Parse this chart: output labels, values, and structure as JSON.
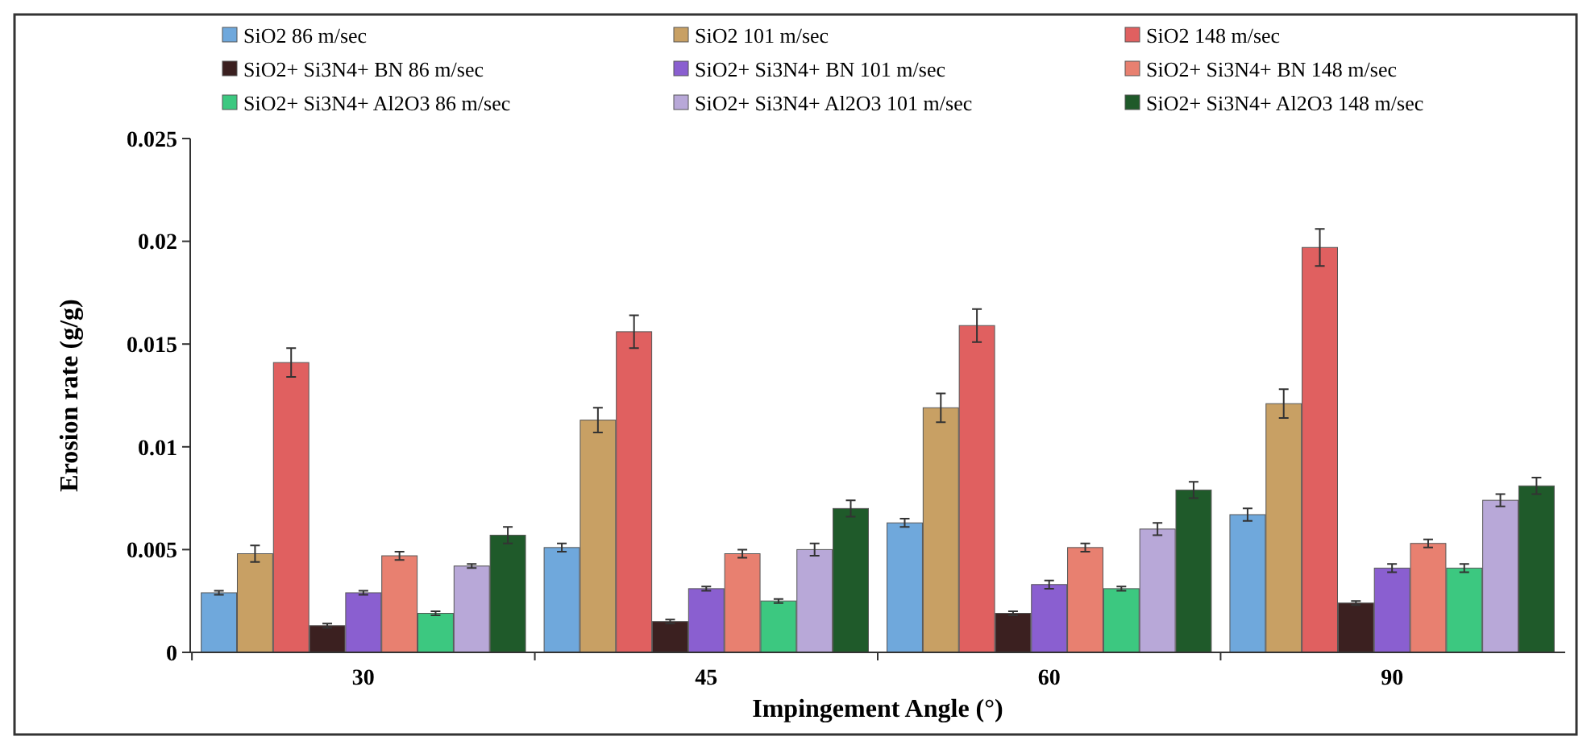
{
  "chart_data": {
    "type": "bar",
    "xlabel": "Impingement Angle (°)",
    "ylabel": "Erosion rate (g/g)",
    "categories": [
      "30",
      "45",
      "60",
      "90"
    ],
    "ylim": [
      0,
      0.025
    ],
    "yticks": [
      0,
      0.005,
      0.01,
      0.015,
      0.02,
      0.025
    ],
    "grid": false,
    "legend": "top",
    "series": [
      {
        "name": "SiO2 86 m/sec",
        "color": "#6fa8dc",
        "values": [
          0.0029,
          0.0051,
          0.0063,
          0.0067
        ],
        "errors": [
          0.0001,
          0.0002,
          0.0002,
          0.0003
        ]
      },
      {
        "name": "SiO2 101 m/sec",
        "color": "#c8a064",
        "values": [
          0.0048,
          0.0113,
          0.0119,
          0.0121
        ],
        "errors": [
          0.0004,
          0.0006,
          0.0007,
          0.0007
        ]
      },
      {
        "name": "SiO2 148 m/sec",
        "color": "#e06060",
        "values": [
          0.0141,
          0.0156,
          0.0159,
          0.0197
        ],
        "errors": [
          0.0007,
          0.0008,
          0.0008,
          0.0009
        ]
      },
      {
        "name": "SiO2+ Si3N4+ BN 86 m/sec",
        "color": "#3b2020",
        "values": [
          0.0013,
          0.0015,
          0.0019,
          0.0024
        ],
        "errors": [
          0.0001,
          0.0001,
          0.0001,
          0.0001
        ]
      },
      {
        "name": "SiO2+ Si3N4+ BN 101 m/sec",
        "color": "#8a5fd0",
        "values": [
          0.0029,
          0.0031,
          0.0033,
          0.0041
        ],
        "errors": [
          0.0001,
          0.0001,
          0.0002,
          0.0002
        ]
      },
      {
        "name": "SiO2+ Si3N4+ BN 148 m/sec",
        "color": "#e88070",
        "values": [
          0.0047,
          0.0048,
          0.0051,
          0.0053
        ],
        "errors": [
          0.0002,
          0.0002,
          0.0002,
          0.0002
        ]
      },
      {
        "name": "SiO2+ Si3N4+ Al2O3 86 m/sec",
        "color": "#3cc880",
        "values": [
          0.0019,
          0.0025,
          0.0031,
          0.0041
        ],
        "errors": [
          0.0001,
          0.0001,
          0.0001,
          0.0002
        ]
      },
      {
        "name": "SiO2+ Si3N4+ Al2O3 101 m/sec",
        "color": "#b8a8d8",
        "values": [
          0.0042,
          0.005,
          0.006,
          0.0074
        ],
        "errors": [
          0.0001,
          0.0003,
          0.0003,
          0.0003
        ]
      },
      {
        "name": "SiO2+ Si3N4+ Al2O3 148 m/sec",
        "color": "#1f5a2a",
        "values": [
          0.0057,
          0.007,
          0.0079,
          0.0081
        ],
        "errors": [
          0.0004,
          0.0004,
          0.0004,
          0.0004
        ]
      }
    ]
  }
}
